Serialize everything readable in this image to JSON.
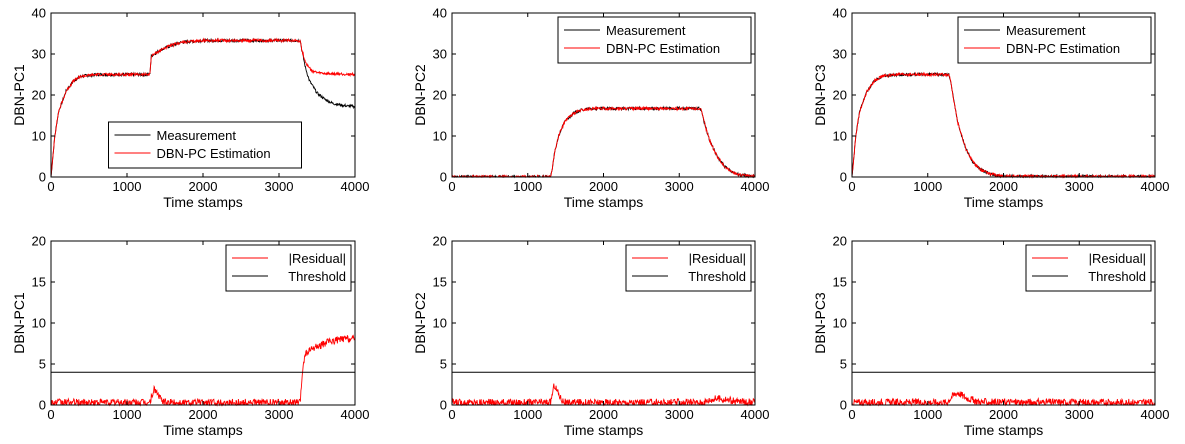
{
  "figure": {
    "colors": {
      "measurement": "#000000",
      "estimation": "#ff0000",
      "residual": "#ff0000",
      "threshold": "#000000"
    }
  },
  "chart_data": [
    {
      "type": "line",
      "ylabel": "DBN-PC1",
      "xlabel": "Time stamps",
      "xlim": [
        0,
        4000
      ],
      "ylim": [
        0,
        40
      ],
      "xticks": [
        "0",
        "1000",
        "2000",
        "3000",
        "4000"
      ],
      "yticks": [
        "0",
        "10",
        "20",
        "30",
        "40"
      ],
      "legend": {
        "placement": "bottom-center"
      },
      "series": [
        {
          "name": "Measurement",
          "color": "#000000",
          "x": [
            0,
            50,
            100,
            200,
            300,
            400,
            600,
            900,
            1300,
            1320,
            1400,
            1500,
            1700,
            2000,
            2500,
            3000,
            3280,
            3300,
            3350,
            3400,
            3500,
            3600,
            3700,
            3800,
            3900,
            4000
          ],
          "y": [
            0,
            10,
            16,
            21,
            23.5,
            24.6,
            25,
            25,
            25,
            29.5,
            30.5,
            31.5,
            32.8,
            33.3,
            33.3,
            33.3,
            33.3,
            31,
            26.5,
            23.5,
            20.5,
            19,
            18,
            17.6,
            17.3,
            17.2
          ]
        },
        {
          "name": "DBN-PC Estimation",
          "color": "#ff0000",
          "x": [
            0,
            50,
            100,
            200,
            300,
            400,
            600,
            900,
            1300,
            1320,
            1400,
            1500,
            1700,
            2000,
            2500,
            3000,
            3280,
            3300,
            3350,
            3400,
            3450,
            3500,
            3600,
            3700,
            3800,
            4000
          ],
          "y": [
            0,
            10,
            16,
            21,
            23.5,
            24.6,
            25,
            25,
            25,
            29.5,
            30.5,
            31.5,
            32.8,
            33.3,
            33.3,
            33.3,
            33.3,
            31,
            28,
            26.5,
            25.8,
            25.4,
            25.2,
            25.1,
            25.1,
            25
          ]
        }
      ]
    },
    {
      "type": "line",
      "ylabel": "DBN-PC2",
      "xlabel": "Time stamps",
      "xlim": [
        0,
        4000
      ],
      "ylim": [
        0,
        40
      ],
      "xticks": [
        "0",
        "1000",
        "2000",
        "3000",
        "4000"
      ],
      "yticks": [
        "0",
        "10",
        "20",
        "30",
        "40"
      ],
      "legend": {
        "placement": "top-right"
      },
      "series": [
        {
          "name": "Measurement",
          "color": "#000000",
          "x": [
            0,
            1300,
            1320,
            1350,
            1400,
            1450,
            1500,
            1600,
            1700,
            1800,
            2000,
            2500,
            3000,
            3280,
            3300,
            3350,
            3400,
            3500,
            3600,
            3700,
            3800,
            4000
          ],
          "y": [
            0,
            0,
            1.5,
            5.5,
            9.5,
            12,
            13.8,
            15.5,
            16.3,
            16.6,
            16.7,
            16.7,
            16.7,
            16.7,
            15.5,
            12,
            9,
            5,
            2.5,
            1.2,
            0.5,
            0.1
          ]
        },
        {
          "name": "DBN-PC Estimation",
          "color": "#ff0000",
          "x": [
            0,
            1300,
            1320,
            1350,
            1400,
            1450,
            1500,
            1600,
            1700,
            1800,
            2000,
            2500,
            3000,
            3280,
            3300,
            3350,
            3400,
            3500,
            3600,
            3700,
            3800,
            4000
          ],
          "y": [
            0,
            0,
            1.5,
            5.5,
            9.5,
            12,
            13.8,
            15.5,
            16.3,
            16.6,
            16.7,
            16.7,
            16.7,
            16.7,
            15.5,
            12,
            9,
            5,
            2.5,
            1.2,
            0.5,
            0.1
          ]
        }
      ]
    },
    {
      "type": "line",
      "ylabel": "DBN-PC3",
      "xlabel": "Time stamps",
      "xlim": [
        0,
        4000
      ],
      "ylim": [
        0,
        40
      ],
      "xticks": [
        "0",
        "1000",
        "2000",
        "3000",
        "4000"
      ],
      "yticks": [
        "0",
        "10",
        "20",
        "30",
        "40"
      ],
      "legend": {
        "placement": "top-right"
      },
      "series": [
        {
          "name": "Measurement",
          "color": "#000000",
          "x": [
            0,
            50,
            100,
            200,
            300,
            400,
            600,
            900,
            1280,
            1300,
            1350,
            1400,
            1500,
            1600,
            1700,
            1800,
            1900,
            2000,
            2500,
            3000,
            4000
          ],
          "y": [
            0,
            10,
            16,
            21,
            23.5,
            24.6,
            25,
            25,
            25,
            23.5,
            18,
            13,
            7,
            3.5,
            1.8,
            0.9,
            0.4,
            0.2,
            0.1,
            0.1,
            0.1
          ]
        },
        {
          "name": "DBN-PC Estimation",
          "color": "#ff0000",
          "x": [
            0,
            50,
            100,
            200,
            300,
            400,
            600,
            900,
            1280,
            1300,
            1350,
            1400,
            1500,
            1600,
            1700,
            1800,
            1900,
            2000,
            2500,
            3000,
            4000
          ],
          "y": [
            0,
            10,
            16,
            21,
            23.5,
            24.6,
            25,
            25,
            25,
            23.5,
            18,
            13,
            7,
            3.5,
            1.8,
            0.9,
            0.4,
            0.2,
            0.1,
            0.1,
            0.1
          ]
        }
      ]
    },
    {
      "type": "line",
      "ylabel": "DBN-PC1",
      "xlabel": "Time stamps",
      "xlim": [
        0,
        4000
      ],
      "ylim": [
        0,
        20
      ],
      "xticks": [
        "0",
        "1000",
        "2000",
        "3000",
        "4000"
      ],
      "yticks": [
        "0",
        "5",
        "10",
        "15",
        "20"
      ],
      "legend": {
        "placement": "top-right"
      },
      "series": [
        {
          "name": "|Residual|",
          "color": "#ff0000",
          "x": [
            0,
            1300,
            1330,
            1360,
            1400,
            1450,
            1500,
            3280,
            3300,
            3320,
            3350,
            3400,
            3500,
            3600,
            3700,
            3800,
            3900,
            4000
          ],
          "y": [
            0.3,
            0.3,
            1.2,
            2,
            1.4,
            0.6,
            0.3,
            0.3,
            3,
            5.2,
            6.2,
            6.6,
            7.1,
            7.5,
            7.8,
            8,
            8.1,
            8
          ]
        },
        {
          "name": "Threshold",
          "color": "#000000",
          "x": [
            0,
            4000
          ],
          "y": [
            4,
            4
          ]
        }
      ]
    },
    {
      "type": "line",
      "ylabel": "DBN-PC2",
      "xlabel": "Time stamps",
      "xlim": [
        0,
        4000
      ],
      "ylim": [
        0,
        20
      ],
      "xticks": [
        "0",
        "1000",
        "2000",
        "3000",
        "4000"
      ],
      "yticks": [
        "0",
        "5",
        "10",
        "15",
        "20"
      ],
      "legend": {
        "placement": "top-right"
      },
      "series": [
        {
          "name": "|Residual|",
          "color": "#ff0000",
          "x": [
            0,
            1300,
            1330,
            1350,
            1400,
            1450,
            1500,
            3300,
            3400,
            3500,
            3600,
            3700,
            4000
          ],
          "y": [
            0.3,
            0.3,
            1.6,
            2.5,
            1.5,
            0.6,
            0.3,
            0.3,
            0.6,
            0.8,
            0.7,
            0.5,
            0.3
          ]
        },
        {
          "name": "Threshold",
          "color": "#000000",
          "x": [
            0,
            4000
          ],
          "y": [
            4,
            4
          ]
        }
      ]
    },
    {
      "type": "line",
      "ylabel": "DBN-PC3",
      "xlabel": "Time stamps",
      "xlim": [
        0,
        4000
      ],
      "ylim": [
        0,
        20
      ],
      "xticks": [
        "0",
        "1000",
        "2000",
        "3000",
        "4000"
      ],
      "yticks": [
        "0",
        "5",
        "10",
        "15",
        "20"
      ],
      "legend": {
        "placement": "top-right"
      },
      "series": [
        {
          "name": "|Residual|",
          "color": "#ff0000",
          "x": [
            0,
            1250,
            1300,
            1350,
            1400,
            1450,
            1500,
            1600,
            1700,
            4000
          ],
          "y": [
            0.3,
            0.3,
            0.8,
            1.3,
            1.5,
            1.2,
            0.9,
            0.6,
            0.35,
            0.3
          ]
        },
        {
          "name": "Threshold",
          "color": "#000000",
          "x": [
            0,
            4000
          ],
          "y": [
            4,
            4
          ]
        }
      ]
    }
  ]
}
